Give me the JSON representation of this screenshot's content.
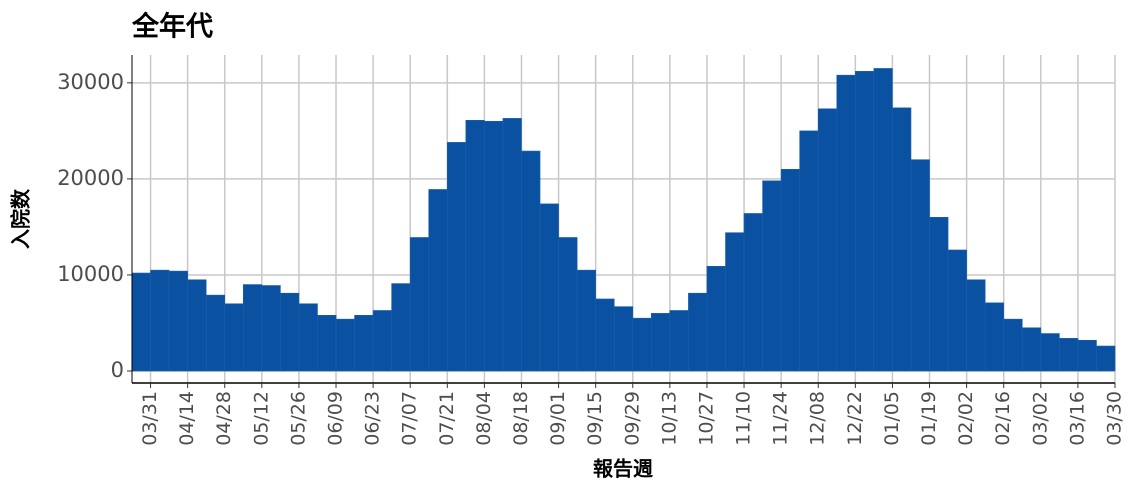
{
  "chart_data": {
    "type": "bar",
    "title": "全年代",
    "y_label": "入院数",
    "x_label": "報告週",
    "categories": [
      "03/31",
      null,
      "04/14",
      null,
      "04/28",
      null,
      "05/12",
      null,
      "05/26",
      null,
      "06/09",
      null,
      "06/23",
      null,
      "07/07",
      null,
      "07/21",
      null,
      "08/04",
      null,
      "08/18",
      null,
      "09/01",
      null,
      "09/15",
      null,
      "09/29",
      null,
      "10/13",
      null,
      "10/27",
      null,
      "11/10",
      null,
      "11/24",
      null,
      "12/08",
      null,
      "12/22",
      null,
      "01/05",
      null,
      "01/19",
      null,
      "02/02",
      null,
      "02/16",
      null,
      "03/02",
      null,
      "03/16",
      null,
      "03/30"
    ],
    "values": [
      10200,
      10500,
      10400,
      9500,
      7900,
      7000,
      9000,
      8900,
      8100,
      7000,
      5800,
      5400,
      5800,
      6300,
      9100,
      13900,
      18900,
      23800,
      26100,
      26000,
      26300,
      22900,
      17400,
      13900,
      10500,
      7500,
      6700,
      5500,
      6000,
      6300,
      8100,
      10900,
      14400,
      16400,
      19800,
      21000,
      25000,
      27300,
      30800,
      31200,
      31500,
      27400,
      22000,
      16000,
      12600,
      9500,
      7100,
      5400,
      4500,
      3900,
      3400,
      3200,
      2600
    ],
    "color": "#0a52a1",
    "ylim": [
      -1250,
      32900
    ],
    "yticks": [
      0,
      10000,
      20000,
      30000
    ],
    "grid": true
  }
}
